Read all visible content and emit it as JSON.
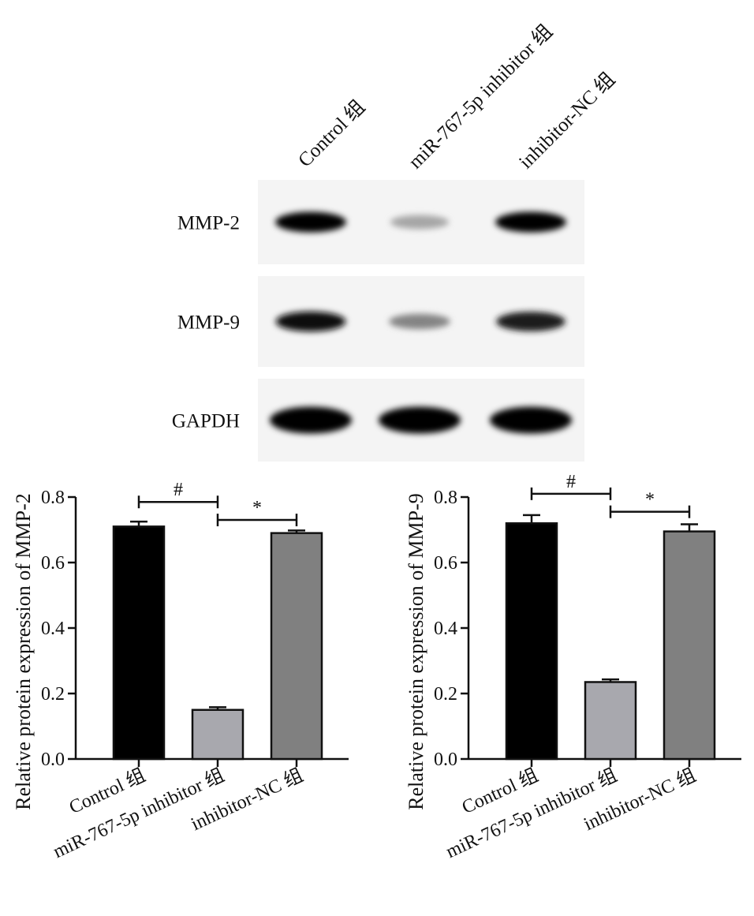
{
  "blot": {
    "lanes": [
      "Control 组",
      "miR-767-5p inhibitor 组",
      "inhibitor-NC 组"
    ],
    "rows": [
      {
        "label": "MMP-2",
        "intensity": [
          1.0,
          0.3,
          1.0
        ]
      },
      {
        "label": "MMP-9",
        "intensity": [
          0.95,
          0.45,
          0.9
        ]
      },
      {
        "label": "GAPDH",
        "intensity": [
          1.0,
          1.0,
          1.0
        ]
      }
    ]
  },
  "chart_data": [
    {
      "type": "bar",
      "categories": [
        "Control 组",
        "miR-767-5p inhibitor 组",
        "inhibitor-NC 组"
      ],
      "values": [
        0.71,
        0.15,
        0.69
      ],
      "errors": [
        0.015,
        0.008,
        0.008
      ],
      "colors": [
        "#000000",
        "#a8a8ae",
        "#808080"
      ],
      "ylabel": "Relative protein expression of MMP-2",
      "ylim": [
        0,
        0.8
      ],
      "yticks": [
        "0.0",
        "0.2",
        "0.4",
        "0.6",
        "0.8"
      ],
      "significance": [
        {
          "from": 0,
          "to": 1,
          "label": "#",
          "y": 0.785
        },
        {
          "from": 1,
          "to": 2,
          "label": "*",
          "y": 0.73
        }
      ]
    },
    {
      "type": "bar",
      "categories": [
        "Control 组",
        "miR-767-5p inhibitor 组",
        "inhibitor-NC 组"
      ],
      "values": [
        0.72,
        0.235,
        0.695
      ],
      "errors": [
        0.025,
        0.008,
        0.022
      ],
      "colors": [
        "#000000",
        "#a8a8ae",
        "#808080"
      ],
      "ylabel": "Relative protein expression of MMP-9",
      "ylim": [
        0,
        0.8
      ],
      "yticks": [
        "0.0",
        "0.2",
        "0.4",
        "0.6",
        "0.8"
      ],
      "significance": [
        {
          "from": 0,
          "to": 1,
          "label": "#",
          "y": 0.81
        },
        {
          "from": 1,
          "to": 2,
          "label": "*",
          "y": 0.755
        }
      ]
    }
  ]
}
